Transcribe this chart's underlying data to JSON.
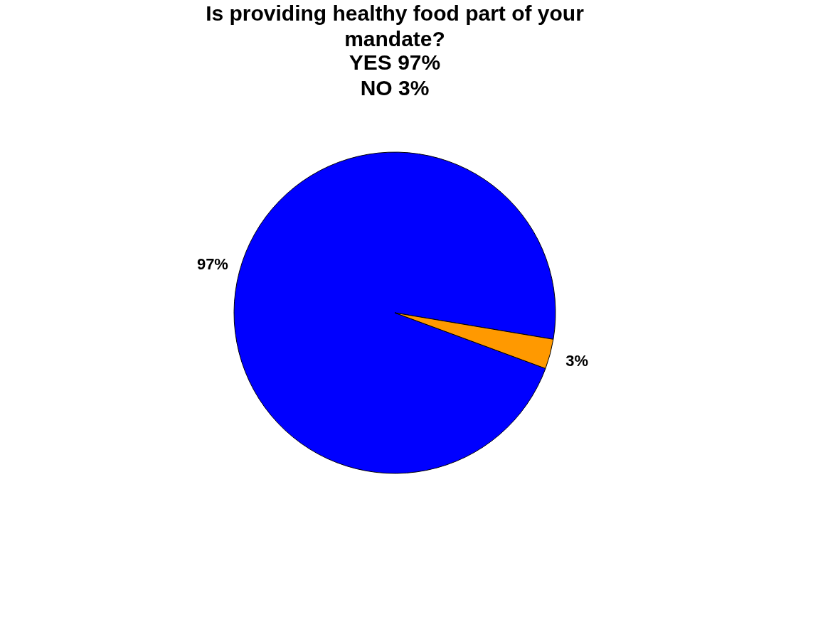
{
  "chart_data": {
    "type": "pie",
    "title": "Is providing healthy food part of your mandate?",
    "subtitle": "YES 97%\nNO 3%",
    "categories": [
      null,
      null
    ],
    "values": [
      97,
      3
    ],
    "colors": [
      "#0000ff",
      "#ff9900"
    ],
    "value_labels": [
      "97%",
      "3%"
    ],
    "legend": false
  }
}
